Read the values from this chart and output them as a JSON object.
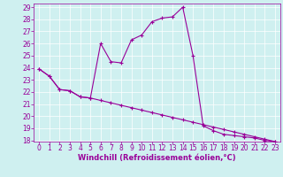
{
  "xlabel": "Windchill (Refroidissement éolien,°C)",
  "background_color": "#cff0f0",
  "line_color": "#990099",
  "grid_color": "#ffffff",
  "x_peak": [
    0,
    1,
    2,
    3,
    4,
    5,
    6,
    7,
    8,
    9,
    10,
    11,
    12,
    13,
    14,
    15,
    16,
    17,
    18,
    19,
    20,
    21,
    22,
    23
  ],
  "y_peak": [
    23.9,
    23.3,
    22.2,
    22.1,
    21.6,
    21.5,
    26.0,
    24.5,
    24.4,
    26.3,
    26.7,
    27.8,
    28.1,
    28.2,
    29.0,
    25.0,
    19.2,
    18.8,
    18.5,
    18.4,
    18.3,
    18.2,
    18.0,
    17.9
  ],
  "x_low": [
    0,
    1,
    2,
    3,
    4,
    5,
    6,
    7,
    8,
    9,
    10,
    11,
    12,
    13,
    14,
    15,
    16,
    17,
    18,
    19,
    20,
    21,
    22,
    23
  ],
  "y_low": [
    23.9,
    23.3,
    22.2,
    22.1,
    21.6,
    21.5,
    21.3,
    21.1,
    20.9,
    20.7,
    20.5,
    20.3,
    20.1,
    19.9,
    19.7,
    19.5,
    19.3,
    19.1,
    18.9,
    18.7,
    18.5,
    18.3,
    18.1,
    17.9
  ],
  "ylim": [
    17.9,
    29.3
  ],
  "xlim": [
    -0.5,
    23.5
  ],
  "yticks": [
    18,
    19,
    20,
    21,
    22,
    23,
    24,
    25,
    26,
    27,
    28,
    29
  ],
  "xticks": [
    0,
    1,
    2,
    3,
    4,
    5,
    6,
    7,
    8,
    9,
    10,
    11,
    12,
    13,
    14,
    15,
    16,
    17,
    18,
    19,
    20,
    21,
    22,
    23
  ],
  "tick_fontsize": 5.5,
  "xlabel_fontsize": 6.0
}
